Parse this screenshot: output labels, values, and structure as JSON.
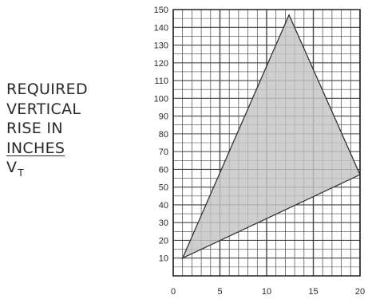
{
  "chart_data": {
    "type": "area",
    "title": "",
    "xlabel": "",
    "ylabel_lines": [
      "REQUIRED",
      "VERTICAL",
      "RISE IN",
      "INCHES"
    ],
    "ylabel_symbol": "V",
    "ylabel_subscript": "T",
    "xlim": [
      0,
      20
    ],
    "ylim": [
      0,
      150
    ],
    "x_ticks": [
      "0",
      "5",
      "10",
      "15",
      "20"
    ],
    "y_ticks": [
      "10",
      "20",
      "30",
      "40",
      "50",
      "60",
      "70",
      "80",
      "90",
      "100",
      "110",
      "120",
      "130",
      "140",
      "150"
    ],
    "x_tick_values": [
      0,
      5,
      10,
      15,
      20
    ],
    "y_tick_values": [
      10,
      20,
      30,
      40,
      50,
      60,
      70,
      80,
      90,
      100,
      110,
      120,
      130,
      140,
      150
    ],
    "minor_grid_step": {
      "x": 1,
      "y": 5
    },
    "grid": true,
    "polygon": [
      {
        "x": 1,
        "y": 10
      },
      {
        "x": 12.4,
        "y": 147
      },
      {
        "x": 20,
        "y": 57
      }
    ],
    "fill_color": "#c4c4c4",
    "line_color": "#333333",
    "grid_color": "#444444"
  }
}
